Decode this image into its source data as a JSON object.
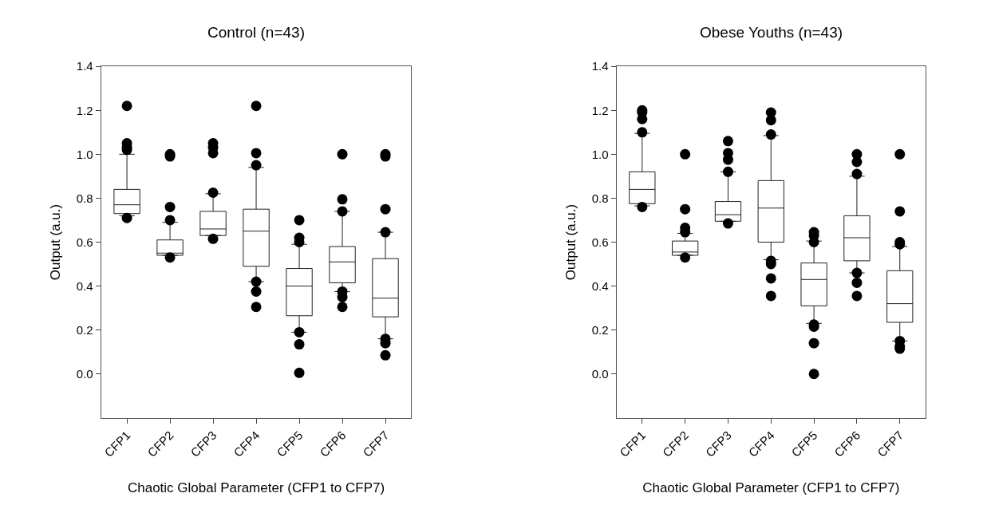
{
  "chart_data": [
    {
      "type": "box",
      "title": "Control (n=43)",
      "xlabel": "Chaotic Global Parameter (CFP1 to CFP7)",
      "ylabel": "Output (a.u.)",
      "categories": [
        "CFP1",
        "CFP2",
        "CFP3",
        "CFP4",
        "CFP5",
        "CFP6",
        "CFP7"
      ],
      "ylim": [
        -0.2,
        1.4
      ],
      "yticks": [
        {
          "value": 0,
          "label": "0.0"
        },
        {
          "value": 0.2,
          "label": "0.2"
        },
        {
          "value": 0.4,
          "label": "0.4"
        },
        {
          "value": 0.6,
          "label": "0.6"
        },
        {
          "value": 0.8,
          "label": "0.8"
        },
        {
          "value": 1.0,
          "label": "1.0"
        },
        {
          "value": 1.2,
          "label": "1.2"
        },
        {
          "value": 1.4,
          "label": "1.4"
        }
      ],
      "boxes": [
        {
          "low": 0.72,
          "q1": 0.73,
          "median": 0.77,
          "q3": 0.84,
          "high": 1.0,
          "outliers": [
            1.22,
            1.05,
            1.03,
            1.02,
            0.71
          ]
        },
        {
          "low": 0.54,
          "q1": 0.54,
          "median": 0.55,
          "q3": 0.61,
          "high": 0.69,
          "outliers": [
            1.0,
            0.99,
            0.76,
            0.7,
            0.53
          ]
        },
        {
          "low": 0.63,
          "q1": 0.63,
          "median": 0.66,
          "q3": 0.74,
          "high": 0.82,
          "outliers": [
            1.05,
            1.03,
            1.005,
            0.825,
            0.615
          ]
        },
        {
          "low": 0.42,
          "q1": 0.49,
          "median": 0.65,
          "q3": 0.75,
          "high": 0.94,
          "outliers": [
            1.22,
            1.005,
            0.95,
            0.42,
            0.375,
            0.305
          ]
        },
        {
          "low": 0.19,
          "q1": 0.265,
          "median": 0.4,
          "q3": 0.48,
          "high": 0.59,
          "outliers": [
            0.7,
            0.62,
            0.6,
            0.19,
            0.135,
            0.005
          ]
        },
        {
          "low": 0.375,
          "q1": 0.415,
          "median": 0.51,
          "q3": 0.58,
          "high": 0.74,
          "outliers": [
            1.0,
            0.795,
            0.74,
            0.375,
            0.35,
            0.305
          ]
        },
        {
          "low": 0.16,
          "q1": 0.26,
          "median": 0.345,
          "q3": 0.525,
          "high": 0.645,
          "outliers": [
            1.0,
            0.99,
            0.75,
            0.645,
            0.16,
            0.14,
            0.085
          ]
        }
      ]
    },
    {
      "type": "box",
      "title": "Obese Youths (n=43)",
      "xlabel": "Chaotic Global Parameter (CFP1 to CFP7)",
      "ylabel": "Output (a.u.)",
      "categories": [
        "CFP1",
        "CFP2",
        "CFP3",
        "CFP4",
        "CFP5",
        "CFP6",
        "CFP7"
      ],
      "ylim": [
        -0.2,
        1.4
      ],
      "yticks": [
        {
          "value": 0,
          "label": "0.0"
        },
        {
          "value": 0.2,
          "label": "0.2"
        },
        {
          "value": 0.4,
          "label": "0.4"
        },
        {
          "value": 0.6,
          "label": "0.6"
        },
        {
          "value": 0.8,
          "label": "0.8"
        },
        {
          "value": 1.0,
          "label": "1.0"
        },
        {
          "value": 1.2,
          "label": "1.2"
        },
        {
          "value": 1.4,
          "label": "1.4"
        }
      ],
      "boxes": [
        {
          "low": 0.765,
          "q1": 0.775,
          "median": 0.84,
          "q3": 0.92,
          "high": 1.095,
          "outliers": [
            1.2,
            1.19,
            1.16,
            1.1,
            0.76
          ]
        },
        {
          "low": 0.54,
          "q1": 0.54,
          "median": 0.555,
          "q3": 0.605,
          "high": 0.64,
          "outliers": [
            1.0,
            0.75,
            0.665,
            0.645,
            0.53
          ]
        },
        {
          "low": 0.695,
          "q1": 0.695,
          "median": 0.725,
          "q3": 0.785,
          "high": 0.92,
          "outliers": [
            1.06,
            1.005,
            0.975,
            0.92,
            0.685
          ]
        },
        {
          "low": 0.52,
          "q1": 0.6,
          "median": 0.755,
          "q3": 0.88,
          "high": 1.085,
          "outliers": [
            1.19,
            1.155,
            1.09,
            0.515,
            0.5,
            0.435,
            0.355
          ]
        },
        {
          "low": 0.23,
          "q1": 0.31,
          "median": 0.43,
          "q3": 0.505,
          "high": 0.605,
          "outliers": [
            0.645,
            0.63,
            0.6,
            0.225,
            0.215,
            0.14,
            0.0
          ]
        },
        {
          "low": 0.46,
          "q1": 0.515,
          "median": 0.62,
          "q3": 0.72,
          "high": 0.9,
          "outliers": [
            1.0,
            0.965,
            0.91,
            0.46,
            0.415,
            0.355
          ]
        },
        {
          "low": 0.15,
          "q1": 0.235,
          "median": 0.32,
          "q3": 0.47,
          "high": 0.58,
          "outliers": [
            1.0,
            0.74,
            0.6,
            0.59,
            0.15,
            0.125,
            0.115
          ]
        }
      ]
    }
  ]
}
